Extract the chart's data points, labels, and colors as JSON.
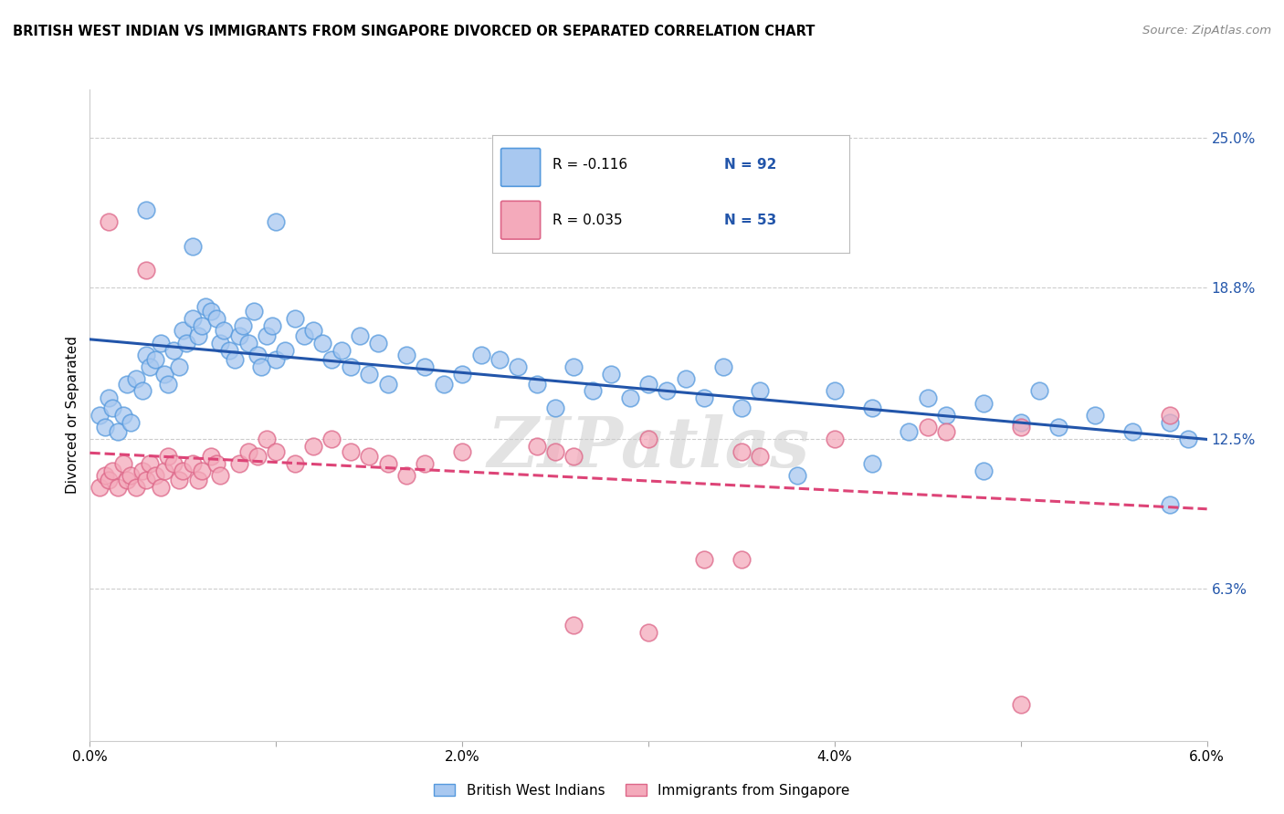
{
  "title": "BRITISH WEST INDIAN VS IMMIGRANTS FROM SINGAPORE DIVORCED OR SEPARATED CORRELATION CHART",
  "source": "Source: ZipAtlas.com",
  "ylabel": "Divorced or Separated",
  "ytick_labels": [
    "6.3%",
    "12.5%",
    "18.8%",
    "25.0%"
  ],
  "ytick_values": [
    6.3,
    12.5,
    18.8,
    25.0
  ],
  "xmin": 0.0,
  "xmax": 6.0,
  "ymin": 0.0,
  "ymax": 27.0,
  "legend1_r": "-0.116",
  "legend1_n": "92",
  "legend2_r": "0.035",
  "legend2_n": "53",
  "legend_label1": "British West Indians",
  "legend_label2": "Immigrants from Singapore",
  "blue_color": "#A8C8F0",
  "pink_color": "#F4AABB",
  "blue_edge_color": "#5599DD",
  "pink_edge_color": "#DD6688",
  "blue_line_color": "#2255AA",
  "pink_line_color": "#DD4477",
  "watermark": "ZIPatlas",
  "blue_points": [
    [
      0.05,
      13.5
    ],
    [
      0.08,
      13.0
    ],
    [
      0.1,
      14.2
    ],
    [
      0.12,
      13.8
    ],
    [
      0.15,
      12.8
    ],
    [
      0.18,
      13.5
    ],
    [
      0.2,
      14.8
    ],
    [
      0.22,
      13.2
    ],
    [
      0.25,
      15.0
    ],
    [
      0.28,
      14.5
    ],
    [
      0.3,
      16.0
    ],
    [
      0.32,
      15.5
    ],
    [
      0.35,
      15.8
    ],
    [
      0.38,
      16.5
    ],
    [
      0.4,
      15.2
    ],
    [
      0.42,
      14.8
    ],
    [
      0.45,
      16.2
    ],
    [
      0.48,
      15.5
    ],
    [
      0.5,
      17.0
    ],
    [
      0.52,
      16.5
    ],
    [
      0.55,
      17.5
    ],
    [
      0.58,
      16.8
    ],
    [
      0.6,
      17.2
    ],
    [
      0.62,
      18.0
    ],
    [
      0.65,
      17.8
    ],
    [
      0.68,
      17.5
    ],
    [
      0.7,
      16.5
    ],
    [
      0.72,
      17.0
    ],
    [
      0.75,
      16.2
    ],
    [
      0.78,
      15.8
    ],
    [
      0.8,
      16.8
    ],
    [
      0.82,
      17.2
    ],
    [
      0.85,
      16.5
    ],
    [
      0.88,
      17.8
    ],
    [
      0.9,
      16.0
    ],
    [
      0.92,
      15.5
    ],
    [
      0.95,
      16.8
    ],
    [
      0.98,
      17.2
    ],
    [
      1.0,
      15.8
    ],
    [
      1.05,
      16.2
    ],
    [
      1.1,
      17.5
    ],
    [
      1.15,
      16.8
    ],
    [
      1.2,
      17.0
    ],
    [
      1.25,
      16.5
    ],
    [
      1.3,
      15.8
    ],
    [
      1.35,
      16.2
    ],
    [
      1.4,
      15.5
    ],
    [
      1.45,
      16.8
    ],
    [
      1.5,
      15.2
    ],
    [
      1.55,
      16.5
    ],
    [
      1.6,
      14.8
    ],
    [
      1.7,
      16.0
    ],
    [
      1.8,
      15.5
    ],
    [
      1.9,
      14.8
    ],
    [
      2.0,
      15.2
    ],
    [
      2.1,
      16.0
    ],
    [
      2.2,
      15.8
    ],
    [
      2.3,
      15.5
    ],
    [
      2.4,
      14.8
    ],
    [
      2.5,
      13.8
    ],
    [
      2.6,
      15.5
    ],
    [
      2.7,
      14.5
    ],
    [
      2.8,
      15.2
    ],
    [
      2.9,
      14.2
    ],
    [
      3.0,
      14.8
    ],
    [
      3.1,
      14.5
    ],
    [
      3.2,
      15.0
    ],
    [
      3.3,
      14.2
    ],
    [
      3.4,
      15.5
    ],
    [
      3.5,
      13.8
    ],
    [
      3.6,
      14.5
    ],
    [
      4.0,
      14.5
    ],
    [
      4.2,
      13.8
    ],
    [
      4.4,
      12.8
    ],
    [
      4.5,
      14.2
    ],
    [
      4.6,
      13.5
    ],
    [
      4.8,
      14.0
    ],
    [
      5.0,
      13.2
    ],
    [
      5.1,
      14.5
    ],
    [
      5.2,
      13.0
    ],
    [
      5.4,
      13.5
    ],
    [
      5.6,
      12.8
    ],
    [
      5.8,
      13.2
    ],
    [
      5.9,
      12.5
    ],
    [
      0.3,
      22.0
    ],
    [
      0.55,
      20.5
    ],
    [
      1.0,
      21.5
    ],
    [
      3.8,
      11.0
    ],
    [
      4.2,
      11.5
    ],
    [
      4.8,
      11.2
    ],
    [
      5.8,
      9.8
    ]
  ],
  "pink_points": [
    [
      0.05,
      10.5
    ],
    [
      0.08,
      11.0
    ],
    [
      0.1,
      10.8
    ],
    [
      0.12,
      11.2
    ],
    [
      0.15,
      10.5
    ],
    [
      0.18,
      11.5
    ],
    [
      0.2,
      10.8
    ],
    [
      0.22,
      11.0
    ],
    [
      0.25,
      10.5
    ],
    [
      0.28,
      11.2
    ],
    [
      0.3,
      10.8
    ],
    [
      0.32,
      11.5
    ],
    [
      0.35,
      11.0
    ],
    [
      0.38,
      10.5
    ],
    [
      0.4,
      11.2
    ],
    [
      0.42,
      11.8
    ],
    [
      0.45,
      11.5
    ],
    [
      0.48,
      10.8
    ],
    [
      0.5,
      11.2
    ],
    [
      0.55,
      11.5
    ],
    [
      0.58,
      10.8
    ],
    [
      0.6,
      11.2
    ],
    [
      0.65,
      11.8
    ],
    [
      0.68,
      11.5
    ],
    [
      0.7,
      11.0
    ],
    [
      0.8,
      11.5
    ],
    [
      0.85,
      12.0
    ],
    [
      0.9,
      11.8
    ],
    [
      0.95,
      12.5
    ],
    [
      1.0,
      12.0
    ],
    [
      1.1,
      11.5
    ],
    [
      1.2,
      12.2
    ],
    [
      1.3,
      12.5
    ],
    [
      1.4,
      12.0
    ],
    [
      1.5,
      11.8
    ],
    [
      1.6,
      11.5
    ],
    [
      1.7,
      11.0
    ],
    [
      1.8,
      11.5
    ],
    [
      2.0,
      12.0
    ],
    [
      2.4,
      12.2
    ],
    [
      2.5,
      12.0
    ],
    [
      2.6,
      11.8
    ],
    [
      3.0,
      12.5
    ],
    [
      3.5,
      12.0
    ],
    [
      3.6,
      11.8
    ],
    [
      4.0,
      12.5
    ],
    [
      4.5,
      13.0
    ],
    [
      4.6,
      12.8
    ],
    [
      5.0,
      13.0
    ],
    [
      5.8,
      13.5
    ],
    [
      0.1,
      21.5
    ],
    [
      0.3,
      19.5
    ],
    [
      3.3,
      7.5
    ],
    [
      3.5,
      7.5
    ],
    [
      2.6,
      4.8
    ],
    [
      3.0,
      4.5
    ],
    [
      5.0,
      1.5
    ]
  ]
}
